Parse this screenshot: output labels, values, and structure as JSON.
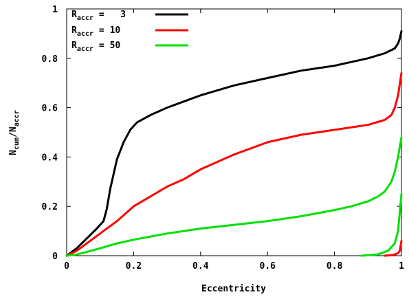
{
  "chart_data": {
    "type": "line",
    "xlabel": "Eccentricity",
    "ylabel_main": "N",
    "ylabel_sub1": "cum",
    "ylabel_mid": "/N",
    "ylabel_sub2": "accr",
    "xlim": [
      0,
      1
    ],
    "ylim": [
      0,
      1
    ],
    "xticks": [
      "0",
      "0.2",
      "0.4",
      "0.6",
      "0.8",
      "1"
    ],
    "xtick_values": [
      0,
      0.2,
      0.4,
      0.6,
      0.8,
      1
    ],
    "yticks": [
      "0",
      "0.2",
      "0.4",
      "0.6",
      "0.8",
      "1"
    ],
    "ytick_values": [
      0,
      0.2,
      0.4,
      0.6,
      0.8,
      1
    ],
    "grid": false,
    "legend_position": "top-left",
    "series": [
      {
        "legend_main": "R",
        "legend_sub": "accr",
        "legend_value": "=   3",
        "color": "#000000",
        "x": [
          0.0,
          0.03,
          0.06,
          0.09,
          0.11,
          0.12,
          0.13,
          0.14,
          0.15,
          0.17,
          0.19,
          0.21,
          0.25,
          0.3,
          0.4,
          0.5,
          0.6,
          0.7,
          0.8,
          0.9,
          0.95,
          0.98,
          0.99,
          0.995,
          1.0
        ],
        "y": [
          0.0,
          0.03,
          0.07,
          0.11,
          0.14,
          0.19,
          0.27,
          0.33,
          0.39,
          0.46,
          0.51,
          0.54,
          0.57,
          0.6,
          0.65,
          0.69,
          0.72,
          0.75,
          0.77,
          0.8,
          0.82,
          0.84,
          0.86,
          0.88,
          0.91
        ]
      },
      {
        "legend_main": "R",
        "legend_sub": "accr",
        "legend_value": "= 10",
        "color": "#ff0000",
        "x": [
          0.0,
          0.03,
          0.06,
          0.09,
          0.11,
          0.13,
          0.15,
          0.2,
          0.25,
          0.3,
          0.35,
          0.4,
          0.5,
          0.6,
          0.7,
          0.8,
          0.9,
          0.95,
          0.97,
          0.98,
          0.99,
          1.0
        ],
        "y": [
          0.0,
          0.02,
          0.05,
          0.08,
          0.1,
          0.12,
          0.14,
          0.2,
          0.24,
          0.28,
          0.31,
          0.35,
          0.41,
          0.46,
          0.49,
          0.51,
          0.53,
          0.55,
          0.57,
          0.6,
          0.65,
          0.74
        ]
      },
      {
        "legend_main": "R",
        "legend_sub": "accr",
        "legend_value": "= 50",
        "color": "#00e000",
        "x": [
          0.0,
          0.03,
          0.06,
          0.1,
          0.15,
          0.2,
          0.3,
          0.4,
          0.5,
          0.6,
          0.7,
          0.8,
          0.85,
          0.9,
          0.93,
          0.95,
          0.97,
          0.98,
          0.99,
          1.0
        ],
        "y": [
          0.0,
          0.005,
          0.015,
          0.03,
          0.05,
          0.065,
          0.09,
          0.11,
          0.125,
          0.14,
          0.16,
          0.185,
          0.2,
          0.22,
          0.24,
          0.26,
          0.3,
          0.34,
          0.4,
          0.48
        ]
      },
      {
        "color": "#00e000",
        "x": [
          0.88,
          0.93,
          0.96,
          0.98,
          0.99,
          1.0
        ],
        "y": [
          0.0,
          0.005,
          0.02,
          0.05,
          0.1,
          0.25
        ]
      },
      {
        "color": "#ff0000",
        "x": [
          0.95,
          0.97,
          0.98,
          0.99,
          0.995,
          1.0
        ],
        "y": [
          0.0,
          0.002,
          0.005,
          0.01,
          0.02,
          0.06
        ]
      }
    ]
  }
}
